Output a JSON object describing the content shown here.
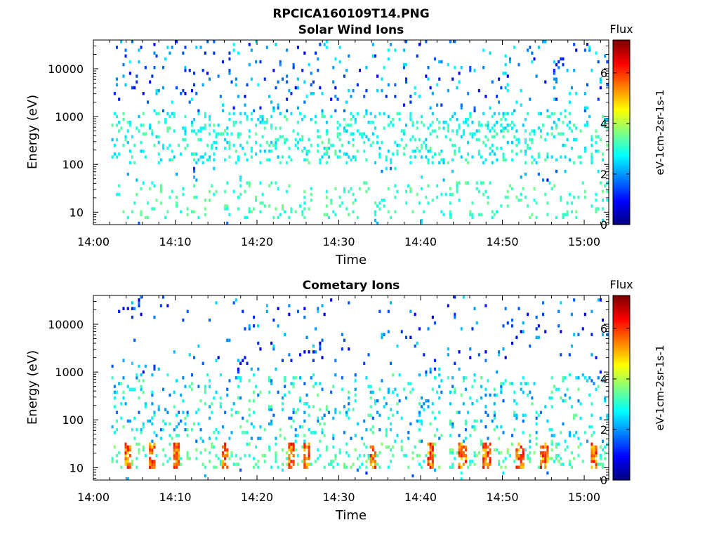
{
  "figure": {
    "title": "RPCICA160109T14.PNG"
  },
  "chart_data": [
    {
      "type": "heatmap",
      "title": "Solar Wind Ions",
      "xlabel": "Time",
      "ylabel": "Energy (eV)",
      "y_scale": "log",
      "xlim": [
        "14:00",
        "15:03"
      ],
      "ylim": [
        5.5,
        40000
      ],
      "x_ticks": [
        "14:00",
        "14:10",
        "14:20",
        "14:30",
        "14:40",
        "14:50",
        "15:00"
      ],
      "y_ticks": [
        "10",
        "100",
        "1000",
        "10000"
      ],
      "colorbar": {
        "label": "Flux",
        "unit": "eV-1cm-2sr-1s-1",
        "range": [
          0,
          7.3
        ],
        "ticks": [
          "0",
          "2",
          "4",
          "6"
        ]
      },
      "dominant_energy_ranges": [
        "~100-1000 eV bursts (cyan/green, flux ~2-3.5)",
        "~10-40 eV columns (green, flux ~3)"
      ],
      "grid": false
    },
    {
      "type": "heatmap",
      "title": "Cometary Ions",
      "xlabel": "Time",
      "ylabel": "Energy (eV)",
      "y_scale": "log",
      "xlim": [
        "14:00",
        "15:03"
      ],
      "ylim": [
        5.5,
        40000
      ],
      "x_ticks": [
        "14:00",
        "14:10",
        "14:20",
        "14:30",
        "14:40",
        "14:50",
        "15:00"
      ],
      "y_ticks": [
        "10",
        "100",
        "1000",
        "10000"
      ],
      "colorbar": {
        "label": "Flux",
        "unit": "eV-1cm-2sr-1s-1",
        "range": [
          0,
          7.3
        ],
        "ticks": [
          "0",
          "2",
          "4",
          "6"
        ]
      },
      "bright_bursts_times": [
        "14:04",
        "14:07",
        "14:10",
        "14:16",
        "14:24",
        "14:26",
        "14:34",
        "14:41",
        "14:45",
        "14:48",
        "14:52",
        "14:55",
        "15:01"
      ],
      "bright_bursts_energy_range": "~15-30 eV, flux ~5-6.5",
      "grid": false
    }
  ]
}
